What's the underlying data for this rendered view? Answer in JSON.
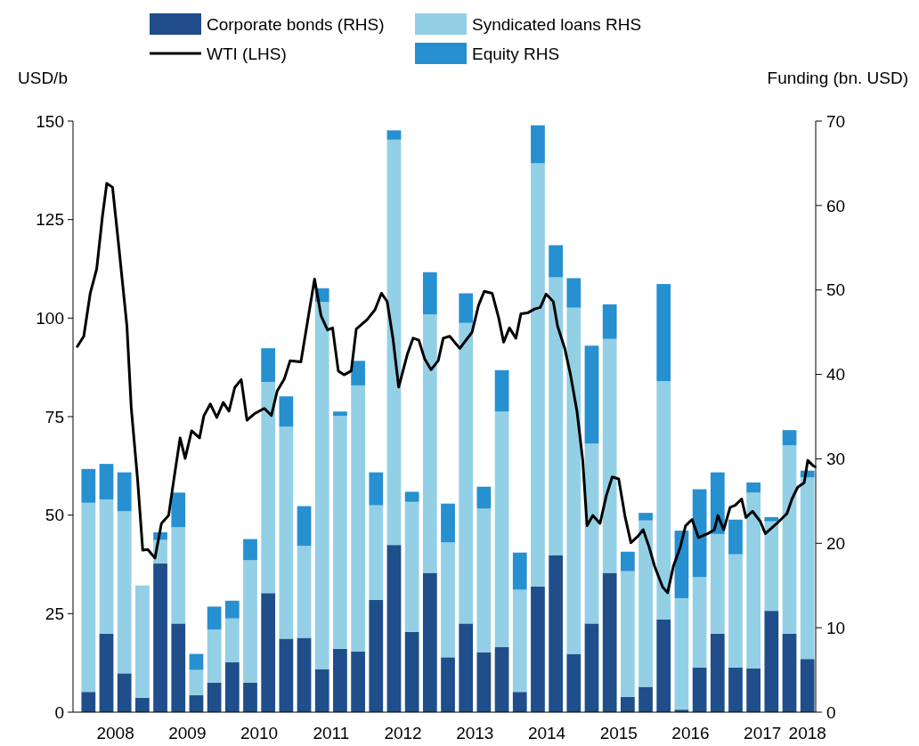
{
  "chart_data": {
    "type": "bar",
    "stacked": true,
    "ylabel": "USD/b",
    "y2label": "Funding (bn. USD)",
    "legend": "top",
    "marker": "none",
    "line_style": "solid",
    "xlim": [
      2007.96,
      2018.24
    ],
    "xticks": [
      {
        "value": 2008.5,
        "label": "2008"
      },
      {
        "value": 2009.5,
        "label": "2009"
      },
      {
        "value": 2010.5,
        "label": "2010"
      },
      {
        "value": 2011.5,
        "label": "2011"
      },
      {
        "value": 2012.5,
        "label": "2012"
      },
      {
        "value": 2013.5,
        "label": "2013"
      },
      {
        "value": 2014.5,
        "label": "2014"
      },
      {
        "value": 2015.5,
        "label": "2015"
      },
      {
        "value": 2016.5,
        "label": "2016"
      },
      {
        "value": 2017.5,
        "label": "2017"
      },
      {
        "value": 2018.125,
        "label": "2018"
      }
    ],
    "ylim": [
      0,
      150
    ],
    "yticks": [
      0,
      25,
      50,
      75,
      100,
      125,
      150
    ],
    "y2lim": [
      0,
      70
    ],
    "y2ticks": [
      0,
      10,
      20,
      30,
      40,
      50,
      60,
      70
    ],
    "x": [
      2008.125,
      2008.375,
      2008.625,
      2008.875,
      2009.125,
      2009.375,
      2009.625,
      2009.875,
      2010.125,
      2010.375,
      2010.625,
      2010.875,
      2011.125,
      2011.375,
      2011.625,
      2011.875,
      2012.125,
      2012.375,
      2012.625,
      2012.875,
      2013.125,
      2013.375,
      2013.625,
      2013.875,
      2014.125,
      2014.375,
      2014.625,
      2014.875,
      2015.125,
      2015.375,
      2015.625,
      2015.875,
      2016.125,
      2016.375,
      2016.625,
      2016.875,
      2017.125,
      2017.375,
      2017.625,
      2017.875,
      2018.125
    ],
    "series": [
      {
        "name": "Corporate bonds (RHS)",
        "axis": "y2",
        "color": "#1f4e8a",
        "values": [
          2.4,
          9.3,
          4.6,
          1.7,
          17.6,
          10.5,
          2.0,
          3.5,
          5.9,
          3.5,
          14.1,
          8.7,
          8.8,
          5.1,
          7.5,
          7.2,
          13.3,
          19.8,
          9.5,
          16.5,
          6.5,
          10.5,
          7.1,
          7.7,
          2.4,
          14.9,
          18.6,
          6.9,
          10.5,
          16.5,
          1.8,
          3.0,
          11.0,
          0.3,
          5.3,
          9.3,
          5.3,
          5.2,
          12.0,
          9.3,
          6.3
        ]
      },
      {
        "name": "Syndicated loans RHS",
        "axis": "y2",
        "color": "#93d0e6",
        "values": [
          22.4,
          15.9,
          19.2,
          13.3,
          2.8,
          11.4,
          3.0,
          6.3,
          5.2,
          14.5,
          25.0,
          25.1,
          10.9,
          43.5,
          27.6,
          31.5,
          11.2,
          48.0,
          15.4,
          30.6,
          13.6,
          35.6,
          17.0,
          27.9,
          12.1,
          50.1,
          32.9,
          41.0,
          21.3,
          27.7,
          14.9,
          19.7,
          28.2,
          13.2,
          10.7,
          11.8,
          13.4,
          20.8,
          10.6,
          22.3,
          21.5
        ]
      },
      {
        "name": "Equity RHS",
        "axis": "y2",
        "color": "#2690d0",
        "values": [
          4.0,
          4.2,
          4.6,
          0,
          0.9,
          4.1,
          1.9,
          2.7,
          2.1,
          2.5,
          4.0,
          3.6,
          4.7,
          1.6,
          0.5,
          2.9,
          3.9,
          1.1,
          1.2,
          5.0,
          4.6,
          3.5,
          2.6,
          4.9,
          4.4,
          4.5,
          3.8,
          3.5,
          11.6,
          4.1,
          2.3,
          0.9,
          11.5,
          8.0,
          10.4,
          7.3,
          4.1,
          1.2,
          0.5,
          1.8,
          0.8
        ]
      },
      {
        "name": "WTI (LHS)",
        "type": "line",
        "axis": "y",
        "color": "#000000",
        "x": [
          2007.97,
          2008.06,
          2008.15,
          2008.24,
          2008.32,
          2008.38,
          2008.46,
          2008.55,
          2008.66,
          2008.72,
          2008.81,
          2008.88,
          2008.95,
          2009.05,
          2009.14,
          2009.24,
          2009.31,
          2009.4,
          2009.47,
          2009.56,
          2009.67,
          2009.73,
          2009.82,
          2009.91,
          2010.0,
          2010.08,
          2010.16,
          2010.25,
          2010.33,
          2010.44,
          2010.57,
          2010.67,
          2010.75,
          2010.85,
          2010.93,
          2011.08,
          2011.19,
          2011.27,
          2011.36,
          2011.45,
          2011.52,
          2011.6,
          2011.68,
          2011.78,
          2011.85,
          2012.0,
          2012.11,
          2012.2,
          2012.28,
          2012.36,
          2012.44,
          2012.56,
          2012.64,
          2012.72,
          2012.8,
          2012.89,
          2012.99,
          2013.06,
          2013.15,
          2013.29,
          2013.46,
          2013.55,
          2013.63,
          2013.74,
          2013.83,
          2013.9,
          2013.98,
          2014.07,
          2014.14,
          2014.23,
          2014.33,
          2014.41,
          2014.49,
          2014.59,
          2014.65,
          2014.75,
          2014.83,
          2014.92,
          2015.0,
          2015.06,
          2015.14,
          2015.24,
          2015.33,
          2015.41,
          2015.5,
          2015.59,
          2015.67,
          2015.77,
          2015.84,
          2015.92,
          2016.0,
          2016.11,
          2016.18,
          2016.26,
          2016.36,
          2016.43,
          2016.52,
          2016.61,
          2016.74,
          2016.83,
          2016.88,
          2016.96,
          2017.05,
          2017.12,
          2017.21,
          2017.27,
          2017.36,
          2017.47,
          2017.54,
          2017.7,
          2017.84,
          2017.91,
          2017.99,
          2018.08,
          2018.13,
          2018.2,
          2018.23
        ],
        "values": [
          92.8,
          95.4,
          106.3,
          112.5,
          125.9,
          134.2,
          133.2,
          117.7,
          98.0,
          77.3,
          58.7,
          41.1,
          41.3,
          39.1,
          47.9,
          49.9,
          58.7,
          69.6,
          64.4,
          71.4,
          69.6,
          75.2,
          78.2,
          74.8,
          78.6,
          76.4,
          82.4,
          84.4,
          74.1,
          75.8,
          77.1,
          75.3,
          81.5,
          84.6,
          89.2,
          88.9,
          101.1,
          109.9,
          100.6,
          97.0,
          97.5,
          86.6,
          85.6,
          86.6,
          97.2,
          99.6,
          102.1,
          106.3,
          104.2,
          94.9,
          82.5,
          90.8,
          94.9,
          94.4,
          89.7,
          86.9,
          89.2,
          94.9,
          95.4,
          92.3,
          96.4,
          103.2,
          106.8,
          106.3,
          100.1,
          93.9,
          97.5,
          94.9,
          101.1,
          101.3,
          102.3,
          102.7,
          106.1,
          104.2,
          98.0,
          92.3,
          85.6,
          76.3,
          63.9,
          47.3,
          49.9,
          47.9,
          55.1,
          59.7,
          59.2,
          49.5,
          43.0,
          44.7,
          46.3,
          42.1,
          37.0,
          31.8,
          30.3,
          37.0,
          42.1,
          47.3,
          48.9,
          44.3,
          45.3,
          46.3,
          49.9,
          46.3,
          52.0,
          52.5,
          54.1,
          49.4,
          51.0,
          48.4,
          45.3,
          47.9,
          50.4,
          54.1,
          57.1,
          58.2,
          63.9,
          62.6,
          62.3
        ]
      }
    ]
  }
}
